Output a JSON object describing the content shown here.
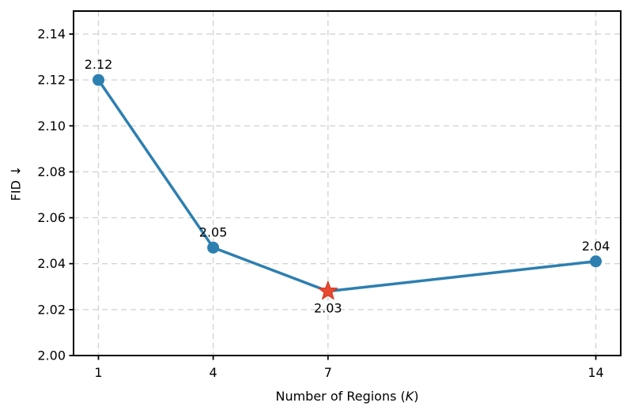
{
  "chart_data": {
    "type": "line",
    "xlabel_prefix": "Number of Regions (",
    "xlabel_italic": "K",
    "xlabel_suffix": ")",
    "ylabel": "FID ↓",
    "x": [
      1,
      4,
      7,
      14
    ],
    "y": [
      2.12,
      2.047,
      2.028,
      2.041
    ],
    "point_labels": [
      "2.12",
      "2.05",
      "2.03",
      "2.04"
    ],
    "label_position": [
      "above",
      "above",
      "below",
      "above"
    ],
    "highlight_index": 2,
    "marker": "circle",
    "highlight_marker": "star",
    "xticks": [
      1,
      4,
      7,
      14
    ],
    "xtick_labels": [
      "1",
      "4",
      "7",
      "14"
    ],
    "yticks": [
      2.0,
      2.02,
      2.04,
      2.06,
      2.08,
      2.1,
      2.12,
      2.14
    ],
    "ytick_labels": [
      "2.00",
      "2.02",
      "2.04",
      "2.06",
      "2.08",
      "2.10",
      "2.12",
      "2.14"
    ],
    "xlim": [
      0.35,
      14.65
    ],
    "ylim": [
      2.0,
      2.15
    ],
    "grid": true,
    "legend": null,
    "line_color": "#2d7fb0",
    "highlight_color": "#e6492f",
    "highlight_edge_color": "#d03a24",
    "grid_color": "#d4d4d4",
    "frame_color": "#000000",
    "text_color": "#000000"
  }
}
